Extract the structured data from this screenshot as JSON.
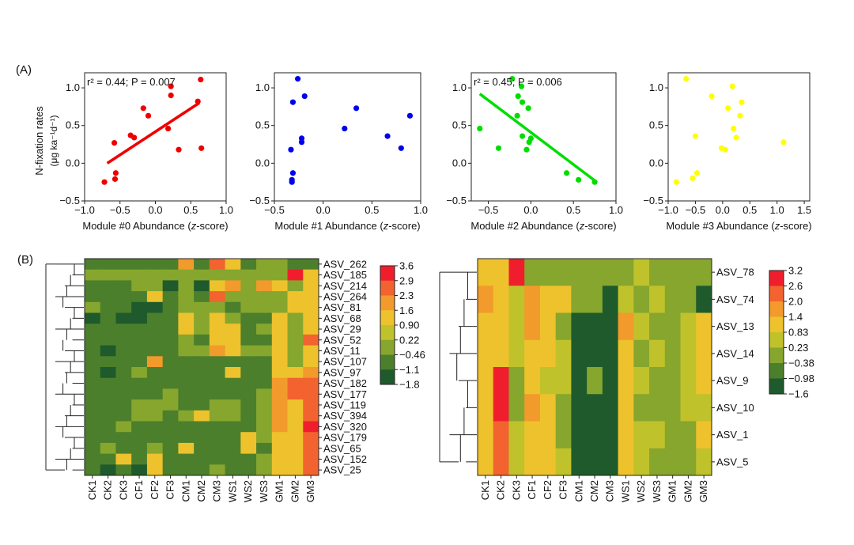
{
  "panel_labels": {
    "a": "(A)",
    "b": "(B)"
  },
  "colors": {
    "scatter": [
      "#ee0000",
      "#0000ee",
      "#00dd00",
      "#ffff00"
    ],
    "ramp": [
      "#1e5a2c",
      "#4c7f2c",
      "#86a62e",
      "#c0c22b",
      "#eec22c",
      "#f29a2c",
      "#f2632f",
      "#f01e2c"
    ]
  },
  "chart_data": [
    {
      "type": "scatter",
      "panel": "A1",
      "xlabel_pre": "Module #0 Abundance (",
      "xlabel_ital": "z",
      "xlabel_post": "-score)",
      "ylabel_line1": "N-fixation rates",
      "ylabel_line2": "(μg ka⁻¹d⁻¹)",
      "xlim": [
        -1.0,
        1.0
      ],
      "ylim": [
        -0.5,
        1.2
      ],
      "xticks": [
        -1.0,
        -0.5,
        0.0,
        0.5,
        1.0
      ],
      "xtick_labels": [
        "−1.0",
        "−0.5",
        "0.0",
        "0.5",
        "1.0"
      ],
      "yticks": [
        -0.5,
        0.0,
        0.5,
        1.0
      ],
      "ytick_labels": [
        "−0.5",
        "0.0",
        "0.5",
        "1.0"
      ],
      "annotation": {
        "r2": "r² = 0.44; P = 0.007"
      },
      "fit": {
        "x": [
          -0.68,
          0.62
        ],
        "y": [
          0.0,
          0.8
        ]
      },
      "points": [
        [
          -0.72,
          -0.25
        ],
        [
          -0.57,
          -0.21
        ],
        [
          -0.56,
          -0.13
        ],
        [
          -0.58,
          0.27
        ],
        [
          -0.35,
          0.37
        ],
        [
          -0.3,
          0.34
        ],
        [
          -0.17,
          0.73
        ],
        [
          -0.1,
          0.63
        ],
        [
          0.18,
          0.46
        ],
        [
          0.22,
          0.9
        ],
        [
          0.22,
          1.02
        ],
        [
          0.33,
          0.18
        ],
        [
          0.6,
          0.82
        ],
        [
          0.64,
          1.11
        ],
        [
          0.65,
          0.2
        ]
      ]
    },
    {
      "type": "scatter",
      "panel": "A2",
      "xlabel_pre": "Module #1 Abundance (",
      "xlabel_ital": "z",
      "xlabel_post": "-score)",
      "xlim": [
        -0.5,
        1.0
      ],
      "ylim": [
        -0.5,
        1.2
      ],
      "xticks": [
        -0.5,
        0.0,
        0.5,
        1.0
      ],
      "xtick_labels": [
        "−0.5",
        "0.0",
        "0.5",
        "1.0"
      ],
      "yticks": [
        -0.5,
        0.0,
        0.5,
        1.0
      ],
      "ytick_labels": [
        "−0.5",
        "0.0",
        "0.5",
        "1.0"
      ],
      "points": [
        [
          -0.32,
          -0.25
        ],
        [
          -0.32,
          -0.22
        ],
        [
          -0.31,
          -0.13
        ],
        [
          -0.33,
          0.18
        ],
        [
          -0.22,
          0.28
        ],
        [
          -0.22,
          0.33
        ],
        [
          -0.31,
          0.81
        ],
        [
          -0.26,
          1.12
        ],
        [
          -0.19,
          0.89
        ],
        [
          0.22,
          0.46
        ],
        [
          0.34,
          0.73
        ],
        [
          0.66,
          0.36
        ],
        [
          0.8,
          0.2
        ],
        [
          0.89,
          0.63
        ]
      ]
    },
    {
      "type": "scatter",
      "panel": "A3",
      "xlabel_pre": "Module #2 Abundance (",
      "xlabel_ital": "z",
      "xlabel_post": "-score)",
      "xlim": [
        -0.7,
        1.0
      ],
      "ylim": [
        -0.5,
        1.2
      ],
      "xticks": [
        -0.5,
        0.0,
        0.5,
        1.0
      ],
      "xtick_labels": [
        "−0.5",
        "0.0",
        "0.5",
        "1.0"
      ],
      "yticks": [
        -0.5,
        0.0,
        0.5,
        1.0
      ],
      "ytick_labels": [
        "−0.5",
        "0.0",
        "0.5",
        "1.0"
      ],
      "annotation": {
        "r2": "r² = 0.45; P = 0.006"
      },
      "fit": {
        "x": [
          -0.6,
          0.75
        ],
        "y": [
          0.92,
          -0.23
        ]
      },
      "points": [
        [
          -0.6,
          0.46
        ],
        [
          -0.38,
          0.2
        ],
        [
          -0.22,
          1.12
        ],
        [
          -0.15,
          0.89
        ],
        [
          -0.16,
          0.63
        ],
        [
          -0.1,
          0.81
        ],
        [
          -0.11,
          1.02
        ],
        [
          -0.03,
          0.73
        ],
        [
          -0.02,
          0.28
        ],
        [
          0.0,
          0.33
        ],
        [
          -0.05,
          0.18
        ],
        [
          -0.1,
          0.36
        ],
        [
          0.42,
          -0.13
        ],
        [
          0.56,
          -0.22
        ],
        [
          0.75,
          -0.25
        ]
      ]
    },
    {
      "type": "scatter",
      "panel": "A4",
      "xlabel_pre": "Module #3 Abundance (",
      "xlabel_ital": "z",
      "xlabel_post": "-score)",
      "xlim": [
        -1.0,
        1.6
      ],
      "ylim": [
        -0.5,
        1.2
      ],
      "xticks": [
        -1.0,
        -0.5,
        0.0,
        0.5,
        1.0,
        1.5
      ],
      "xtick_labels": [
        "−1.0",
        "−0.5",
        "0.0",
        "0.5",
        "1.0",
        "1.5"
      ],
      "yticks": [
        -0.5,
        0.0,
        0.5,
        1.0
      ],
      "ytick_labels": [
        "−0.5",
        "0.0",
        "0.5",
        "1.0"
      ],
      "points": [
        [
          -0.85,
          -0.25
        ],
        [
          -0.55,
          -0.2
        ],
        [
          -0.47,
          -0.13
        ],
        [
          -0.67,
          1.12
        ],
        [
          -0.5,
          0.36
        ],
        [
          -0.2,
          0.89
        ],
        [
          -0.02,
          0.2
        ],
        [
          0.05,
          0.18
        ],
        [
          0.1,
          0.73
        ],
        [
          0.18,
          1.02
        ],
        [
          0.2,
          0.46
        ],
        [
          0.25,
          0.34
        ],
        [
          0.35,
          0.81
        ],
        [
          0.32,
          0.63
        ],
        [
          1.12,
          0.28
        ]
      ]
    },
    {
      "type": "heatmap",
      "panel": "B1",
      "columns": [
        "CK1",
        "CK2",
        "CK3",
        "CF1",
        "CF2",
        "CF3",
        "CM1",
        "CM2",
        "CM3",
        "WS1",
        "WS2",
        "WS3",
        "GM1",
        "GM2",
        "GM3"
      ],
      "rows": [
        "ASV_262",
        "ASV_185",
        "ASV_214",
        "ASV_264",
        "ASV_81",
        "ASV_68",
        "ASV_29",
        "ASV_52",
        "ASV_11",
        "ASV_107",
        "ASV_97",
        "ASV_182",
        "ASV_177",
        "ASV_119",
        "ASV_394",
        "ASV_320",
        "ASV_179",
        "ASV_65",
        "ASV_152",
        "ASV_25"
      ],
      "values": [
        [
          -0.46,
          -0.46,
          -0.46,
          -0.46,
          -0.46,
          -0.46,
          1.6,
          -0.46,
          2.3,
          0.9,
          -0.46,
          0.22,
          0.22,
          -0.46,
          -0.46
        ],
        [
          0.22,
          0.22,
          0.22,
          0.22,
          0.22,
          0.22,
          0.22,
          0.22,
          0.22,
          0.22,
          0.22,
          0.22,
          0.22,
          3.6,
          0.9
        ],
        [
          -0.46,
          -0.46,
          -0.46,
          0.22,
          0.22,
          -1.8,
          0.22,
          -1.8,
          0.9,
          1.6,
          0.22,
          1.6,
          0.9,
          0.22,
          0.9
        ],
        [
          -0.46,
          -0.46,
          -0.46,
          -0.46,
          0.9,
          -0.46,
          0.22,
          -0.46,
          2.9,
          0.22,
          0.22,
          0.22,
          0.22,
          0.9,
          0.9
        ],
        [
          0.22,
          -0.46,
          -0.46,
          -1.8,
          -1.8,
          -0.46,
          0.22,
          0.22,
          0.22,
          -1.1,
          0.22,
          0.22,
          0.22,
          0.9,
          0.9
        ],
        [
          -1.8,
          -0.46,
          -1.8,
          -1.8,
          -0.46,
          -0.46,
          0.9,
          0.22,
          0.9,
          0.22,
          -0.46,
          -0.46,
          0.9,
          0.22,
          0.9
        ],
        [
          -0.46,
          -0.46,
          -0.46,
          -0.46,
          -0.46,
          -0.46,
          0.9,
          0.22,
          0.9,
          0.9,
          -0.46,
          0.22,
          0.9,
          0.22,
          0.9
        ],
        [
          -0.46,
          -0.46,
          -0.46,
          -0.46,
          -0.46,
          -0.46,
          0.22,
          -0.46,
          0.9,
          0.9,
          -0.46,
          -0.46,
          0.9,
          0.22,
          2.3
        ],
        [
          -0.46,
          -1.8,
          -0.46,
          -0.46,
          -0.46,
          -0.46,
          0.22,
          0.22,
          1.6,
          0.9,
          0.22,
          0.22,
          0.9,
          0.22,
          0.9
        ],
        [
          -0.46,
          -0.46,
          -0.46,
          -0.46,
          1.6,
          -0.46,
          -0.46,
          -0.46,
          -0.46,
          -0.46,
          -0.46,
          -0.46,
          0.9,
          0.22,
          0.9
        ],
        [
          -0.46,
          -1.8,
          -0.46,
          0.22,
          -0.46,
          -0.46,
          -0.46,
          -0.46,
          -0.46,
          0.9,
          -0.46,
          -0.46,
          0.9,
          0.9,
          1.6
        ],
        [
          -0.46,
          -0.46,
          -0.46,
          -0.46,
          -0.46,
          -0.46,
          -0.46,
          -0.46,
          -0.46,
          -0.46,
          -0.46,
          -0.46,
          1.6,
          2.9,
          2.3
        ],
        [
          -0.46,
          -0.46,
          -0.46,
          -0.46,
          -0.46,
          0.22,
          -0.46,
          -0.46,
          -0.46,
          -0.46,
          -0.46,
          0.22,
          1.6,
          2.3,
          2.9
        ],
        [
          -0.46,
          -0.46,
          -0.46,
          0.22,
          0.22,
          0.22,
          -0.46,
          -0.46,
          0.22,
          0.22,
          -0.46,
          0.22,
          1.6,
          0.9,
          2.3
        ],
        [
          -0.46,
          -0.46,
          -0.46,
          0.22,
          0.22,
          -0.46,
          0.22,
          0.9,
          0.22,
          0.22,
          -0.46,
          0.22,
          1.6,
          0.9,
          2.3
        ],
        [
          -0.46,
          -0.46,
          0.22,
          -0.46,
          -0.46,
          -0.46,
          -0.46,
          -0.46,
          -0.46,
          -0.46,
          -0.46,
          0.22,
          1.6,
          0.9,
          3.6
        ],
        [
          -0.46,
          -0.46,
          -0.46,
          -0.46,
          -0.46,
          -0.46,
          -0.46,
          -0.46,
          -0.46,
          -0.46,
          0.9,
          0.22,
          0.9,
          0.9,
          2.3
        ],
        [
          -0.46,
          0.22,
          -0.46,
          -0.46,
          0.22,
          -0.46,
          0.9,
          -0.46,
          -0.46,
          -0.46,
          0.9,
          -0.46,
          0.9,
          0.9,
          2.3
        ],
        [
          -0.46,
          -0.46,
          0.9,
          -0.46,
          0.9,
          -0.46,
          -0.46,
          -0.46,
          -0.46,
          -0.46,
          -0.46,
          0.22,
          0.9,
          0.9,
          2.3
        ],
        [
          -0.46,
          -1.8,
          -0.46,
          -1.8,
          0.9,
          -0.46,
          -0.46,
          -0.46,
          0.22,
          -0.46,
          -0.46,
          0.22,
          0.9,
          0.9,
          2.3
        ]
      ],
      "colorbar": {
        "labels": [
          "3.6",
          "2.9",
          "2.3",
          "1.6",
          "0.90",
          "0.22",
          "−0.46",
          "−1.1",
          "−1.8"
        ],
        "min": -1.8,
        "max": 3.6
      }
    },
    {
      "type": "heatmap",
      "panel": "B2",
      "columns": [
        "CK1",
        "CK2",
        "CK3",
        "CF1",
        "CF2",
        "CF3",
        "CM1",
        "CM2",
        "CM3",
        "WS1",
        "WS2",
        "WS3",
        "GM1",
        "GM2",
        "GM3"
      ],
      "rows": [
        "ASV_78",
        "ASV_74",
        "ASV_13",
        "ASV_14",
        "ASV_9",
        "ASV_10",
        "ASV_1",
        "ASV_5"
      ],
      "values": [
        [
          1.4,
          0.83,
          3.2,
          -0.38,
          -0.38,
          -0.38,
          -0.38,
          -0.38,
          -0.38,
          -0.38,
          0.23,
          -0.38,
          -0.38,
          -0.38,
          -0.38
        ],
        [
          2.0,
          0.83,
          0.23,
          2.0,
          0.83,
          1.4,
          -0.38,
          -0.38,
          -1.6,
          0.23,
          -0.38,
          0.23,
          -0.38,
          -0.38,
          -1.6
        ],
        [
          0.83,
          1.4,
          0.23,
          2.0,
          0.83,
          -0.38,
          -1.6,
          -1.6,
          -1.6,
          2.0,
          0.23,
          -0.38,
          -0.38,
          0.23,
          0.83
        ],
        [
          0.83,
          0.83,
          0.23,
          0.83,
          0.83,
          0.23,
          -1.6,
          -1.6,
          -1.6,
          0.83,
          -0.38,
          0.23,
          -0.38,
          0.23,
          0.83
        ],
        [
          1.4,
          3.2,
          -0.38,
          0.83,
          0.23,
          0.23,
          -1.6,
          -0.38,
          -1.6,
          1.4,
          0.23,
          -0.38,
          -0.38,
          0.23,
          0.83
        ],
        [
          0.83,
          3.2,
          -0.38,
          2.0,
          0.83,
          -0.38,
          -1.6,
          -1.6,
          -1.6,
          0.83,
          -0.38,
          -0.38,
          -0.38,
          0.23,
          0.23
        ],
        [
          0.83,
          2.6,
          0.23,
          0.83,
          0.83,
          -0.38,
          -1.6,
          -1.6,
          -1.6,
          1.4,
          0.23,
          0.23,
          -0.38,
          -0.38,
          0.83
        ],
        [
          0.83,
          2.6,
          0.23,
          0.83,
          0.83,
          0.23,
          -1.6,
          -1.6,
          -1.6,
          0.83,
          0.23,
          -0.38,
          -0.38,
          -0.38,
          0.23
        ]
      ],
      "colorbar": {
        "labels": [
          "3.2",
          "2.6",
          "2.0",
          "1.4",
          "0.83",
          "0.23",
          "−0.38",
          "−0.98",
          "−1.6"
        ],
        "min": -1.6,
        "max": 3.2
      }
    }
  ]
}
